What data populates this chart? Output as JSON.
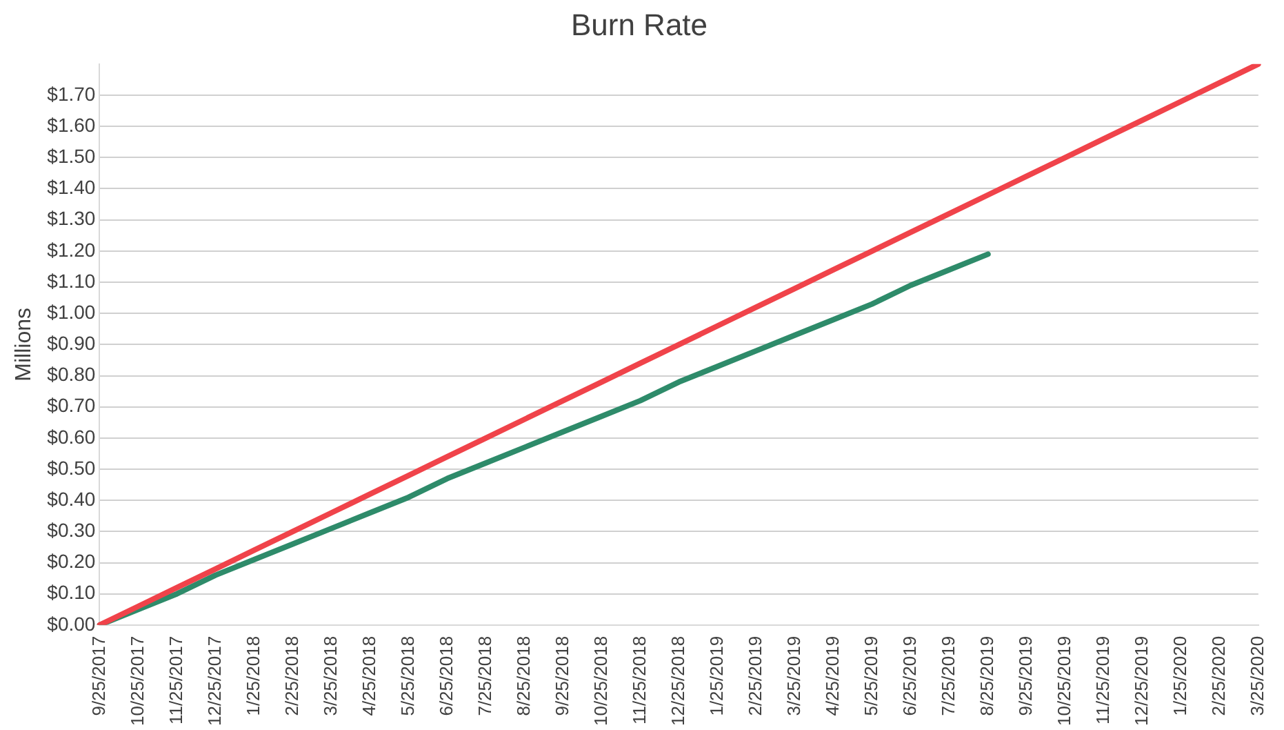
{
  "chart_data": {
    "type": "line",
    "title": "Burn Rate",
    "ylabel": "Millions",
    "categories": [
      "9/25/2017",
      "10/25/2017",
      "11/25/2017",
      "12/25/2017",
      "1/25/2018",
      "2/25/2018",
      "3/25/2018",
      "4/25/2018",
      "5/25/2018",
      "6/25/2018",
      "7/25/2018",
      "8/25/2018",
      "9/25/2018",
      "10/25/2018",
      "11/25/2018",
      "12/25/2018",
      "1/25/2019",
      "2/25/2019",
      "3/25/2019",
      "4/25/2019",
      "5/25/2019",
      "6/25/2019",
      "7/25/2019",
      "8/25/2019",
      "9/25/2019",
      "10/25/2019",
      "11/25/2019",
      "12/25/2019",
      "1/25/2020",
      "2/25/2020",
      "3/25/2020"
    ],
    "series": [
      {
        "color": "#f0434a",
        "values": [
          0,
          0.06,
          0.12,
          0.18,
          0.24,
          0.3,
          0.36,
          0.42,
          0.48,
          0.54,
          0.6,
          0.66,
          0.72,
          0.78,
          0.84,
          0.9,
          0.96,
          1.02,
          1.08,
          1.14,
          1.2,
          1.26,
          1.32,
          1.38,
          1.44,
          1.5,
          1.56,
          1.62,
          1.68,
          1.74,
          1.8
        ]
      },
      {
        "color": "#2e8b6a",
        "values": [
          0,
          0.05,
          0.1,
          0.16,
          0.21,
          0.26,
          0.31,
          0.36,
          0.41,
          0.47,
          0.52,
          0.57,
          0.62,
          0.67,
          0.72,
          0.78,
          0.83,
          0.88,
          0.93,
          0.98,
          1.03,
          1.09,
          1.14,
          1.19,
          null,
          null,
          null,
          null,
          null,
          null,
          null
        ]
      }
    ],
    "ylim": [
      0,
      1.8
    ],
    "yticks": [
      {
        "value": 0,
        "label": "$0.00"
      },
      {
        "value": 0.1,
        "label": "$0.10"
      },
      {
        "value": 0.2,
        "label": "$0.20"
      },
      {
        "value": 0.3,
        "label": "$0.30"
      },
      {
        "value": 0.4,
        "label": "$0.40"
      },
      {
        "value": 0.5,
        "label": "$0.50"
      },
      {
        "value": 0.6,
        "label": "$0.60"
      },
      {
        "value": 0.7,
        "label": "$0.70"
      },
      {
        "value": 0.8,
        "label": "$0.80"
      },
      {
        "value": 0.9,
        "label": "$0.90"
      },
      {
        "value": 1.0,
        "label": "$1.00"
      },
      {
        "value": 1.1,
        "label": "$1.10"
      },
      {
        "value": 1.2,
        "label": "$1.20"
      },
      {
        "value": 1.3,
        "label": "$1.30"
      },
      {
        "value": 1.4,
        "label": "$1.40"
      },
      {
        "value": 1.5,
        "label": "$1.50"
      },
      {
        "value": 1.6,
        "label": "$1.60"
      },
      {
        "value": 1.7,
        "label": "$1.70"
      }
    ],
    "grid": "y",
    "marker": "none",
    "line_style": "solid",
    "legend": false
  }
}
